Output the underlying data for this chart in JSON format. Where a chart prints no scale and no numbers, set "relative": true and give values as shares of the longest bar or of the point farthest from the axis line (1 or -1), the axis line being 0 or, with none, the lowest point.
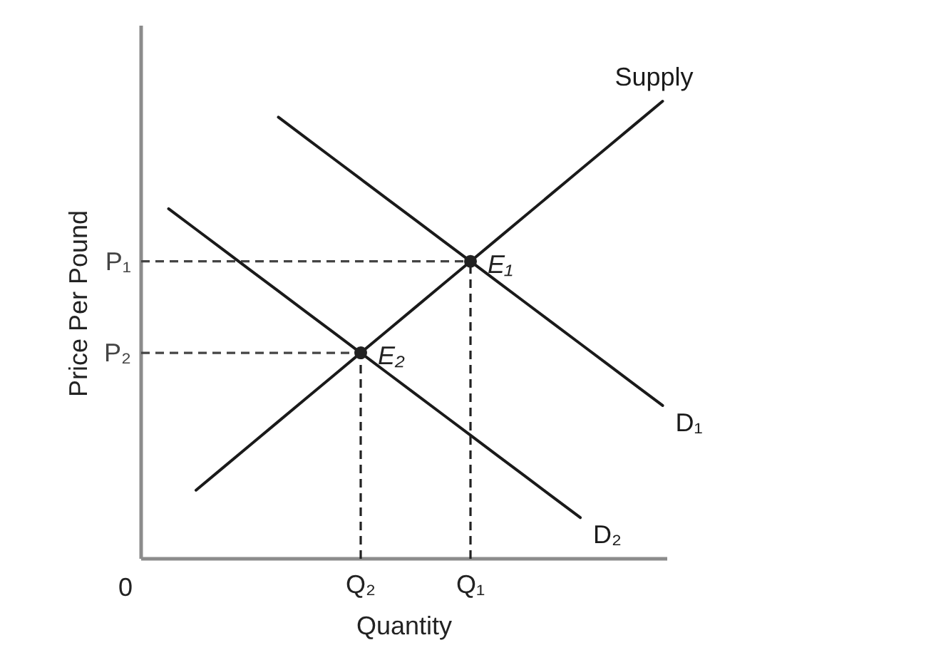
{
  "chart_data": {
    "type": "line",
    "relative": true,
    "xlabel": "Quantity",
    "ylabel": "Price Per Pound",
    "categories": [
      null,
      null,
      null,
      null,
      null,
      null,
      null,
      null,
      "Q₂",
      null,
      null,
      null,
      "Q₁",
      null,
      null,
      null,
      null,
      null,
      null,
      null
    ],
    "series": [
      {
        "name": "P₁",
        "color": "#444444",
        "line_style": "dashed",
        "values": [
          0.65,
          0.65,
          0.65,
          0.65,
          0.65,
          0.65,
          0.65,
          0.65,
          0.65,
          0.65,
          0.65,
          0.65,
          0.65,
          null,
          null,
          null,
          null,
          null,
          null,
          null
        ]
      },
      {
        "name": "P₂",
        "color": "#444444",
        "line_style": "dashed",
        "values": [
          0.45,
          0.45,
          0.45,
          0.45,
          0.45,
          0.45,
          0.45,
          0.45,
          0.45,
          null,
          null,
          null,
          null,
          null,
          null,
          null,
          null,
          null,
          null,
          null
        ]
      },
      {
        "name": "Supply",
        "color": "#1a1a1a",
        "values": [
          null,
          null,
          0.15,
          0.2,
          0.25,
          0.3,
          0.35,
          0.4,
          0.45,
          0.5,
          0.55,
          0.6,
          0.65,
          0.7,
          0.75,
          0.8,
          0.85,
          0.9,
          0.95,
          1.0
        ]
      },
      {
        "name": "D₁",
        "color": "#1a1a1a",
        "values": [
          null,
          null,
          null,
          null,
          null,
          0.965,
          0.92,
          0.875,
          0.83,
          0.785,
          0.74,
          0.695,
          0.65,
          0.605,
          0.56,
          0.515,
          0.47,
          0.425,
          0.38,
          0.335
        ]
      },
      {
        "name": "D₂",
        "color": "#1a1a1a",
        "values": [
          null,
          0.765,
          0.72,
          0.675,
          0.63,
          0.585,
          0.54,
          0.495,
          0.45,
          0.405,
          0.36,
          0.315,
          0.27,
          0.225,
          0.18,
          0.135,
          0.09,
          null,
          null,
          null
        ]
      },
      {
        "type": "lollipop",
        "color": "#222222",
        "line_style": "dashed",
        "marker": "circle",
        "values": [
          null,
          null,
          null,
          null,
          null,
          null,
          null,
          null,
          0.45,
          null,
          null,
          null,
          0.65,
          null,
          null,
          null,
          null,
          null,
          null,
          null
        ]
      }
    ],
    "annotations": [
      {
        "text": "E₁",
        "x": "Q₁",
        "y": 0.65
      },
      {
        "text": "E₂",
        "x": "Q₂",
        "y": 0.45
      },
      "0"
    ]
  }
}
